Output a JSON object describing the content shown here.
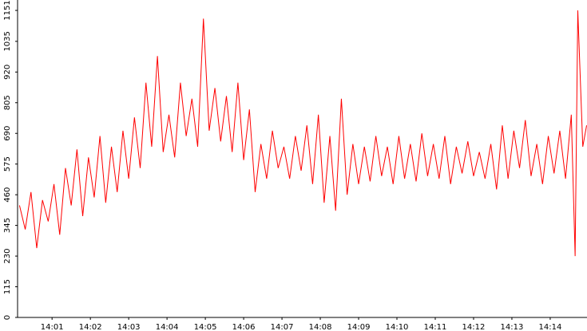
{
  "chart_data": {
    "type": "line",
    "color": "#ff0000",
    "x": [
      840.15,
      840.3,
      840.45,
      840.6,
      840.75,
      840.9,
      841.05,
      841.2,
      841.35,
      841.5,
      841.65,
      841.8,
      841.95,
      842.1,
      842.25,
      842.4,
      842.55,
      842.7,
      842.85,
      843.0,
      843.15,
      843.3,
      843.45,
      843.6,
      843.75,
      843.9,
      844.05,
      844.2,
      844.35,
      844.5,
      844.65,
      844.8,
      844.95,
      845.1,
      845.25,
      845.4,
      845.55,
      845.7,
      845.85,
      846.0,
      846.15,
      846.3,
      846.45,
      846.6,
      846.75,
      846.9,
      847.05,
      847.2,
      847.35,
      847.5,
      847.65,
      847.8,
      847.95,
      848.1,
      848.25,
      848.4,
      848.55,
      848.7,
      848.85,
      849.0,
      849.15,
      849.3,
      849.45,
      849.6,
      849.75,
      849.9,
      850.05,
      850.2,
      850.35,
      850.5,
      850.65,
      850.8,
      850.95,
      851.1,
      851.25,
      851.4,
      851.55,
      851.7,
      851.85,
      852.0,
      852.15,
      852.3,
      852.45,
      852.6,
      852.75,
      852.9,
      853.05,
      853.2,
      853.35,
      853.5,
      853.65,
      853.8,
      853.95,
      854.1,
      854.25,
      854.4,
      854.55,
      854.65,
      854.72,
      854.85,
      854.95
    ],
    "values": [
      420,
      330,
      470,
      260,
      440,
      360,
      500,
      310,
      560,
      420,
      630,
      380,
      600,
      450,
      680,
      430,
      640,
      470,
      700,
      520,
      750,
      560,
      880,
      640,
      980,
      620,
      760,
      600,
      880,
      680,
      820,
      640,
      1120,
      700,
      860,
      660,
      830,
      620,
      880,
      590,
      780,
      470,
      650,
      520,
      700,
      560,
      640,
      520,
      680,
      550,
      720,
      500,
      760,
      430,
      680,
      400,
      820,
      460,
      650,
      500,
      640,
      510,
      680,
      530,
      640,
      500,
      680,
      520,
      650,
      510,
      690,
      530,
      650,
      520,
      680,
      500,
      640,
      540,
      660,
      530,
      620,
      520,
      650,
      480,
      720,
      520,
      700,
      560,
      740,
      530,
      650,
      500,
      680,
      540,
      700,
      520,
      760,
      230,
      1151,
      640,
      720
    ],
    "xlim": [
      840.1,
      854.96
    ],
    "ylim": [
      0,
      1190
    ],
    "yticks": [
      0,
      115,
      230,
      345,
      460,
      575,
      690,
      805,
      920,
      1035,
      1151
    ],
    "xticks": [
      {
        "value": 841,
        "label": "14:01"
      },
      {
        "value": 842,
        "label": "14:02"
      },
      {
        "value": 843,
        "label": "14:03"
      },
      {
        "value": 844,
        "label": "14:04"
      },
      {
        "value": 845,
        "label": "14:05"
      },
      {
        "value": 846,
        "label": "14:06"
      },
      {
        "value": 847,
        "label": "14:07"
      },
      {
        "value": 848,
        "label": "14:08"
      },
      {
        "value": 849,
        "label": "14:09"
      },
      {
        "value": 850,
        "label": "14:10"
      },
      {
        "value": 851,
        "label": "14:11"
      },
      {
        "value": 852,
        "label": "14:12"
      },
      {
        "value": 853,
        "label": "14:13"
      },
      {
        "value": 854,
        "label": "14:14"
      }
    ]
  }
}
